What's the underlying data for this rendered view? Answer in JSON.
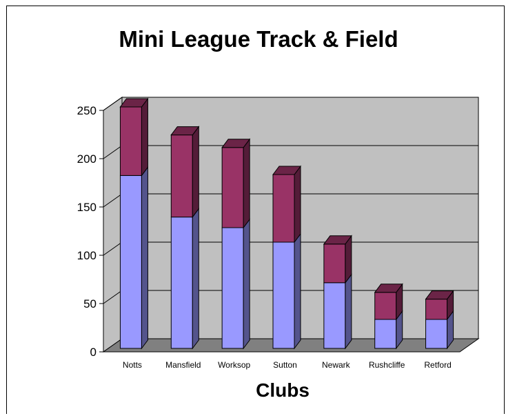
{
  "chart_data": {
    "type": "bar",
    "stacked": true,
    "three_d": true,
    "title": "Mini League Track & Field",
    "xlabel": "Clubs",
    "ylabel": "",
    "categories": [
      "Notts",
      "Mansfield",
      "Worksop",
      "Sutton",
      "Newark",
      "Rushcliffe",
      "Retford"
    ],
    "series": [
      {
        "values": [
          179,
          136,
          125,
          110,
          68,
          30,
          30
        ],
        "color": "#9999ff"
      },
      {
        "values": [
          71,
          85,
          83,
          70,
          40,
          28,
          21
        ],
        "color": "#993366"
      }
    ],
    "ylim": [
      0,
      250
    ],
    "yticks": [
      0,
      50,
      100,
      150,
      200,
      250
    ],
    "grid": true,
    "legend": "none",
    "wall_color": "#c0c0c0",
    "floor_color": "#808080"
  }
}
